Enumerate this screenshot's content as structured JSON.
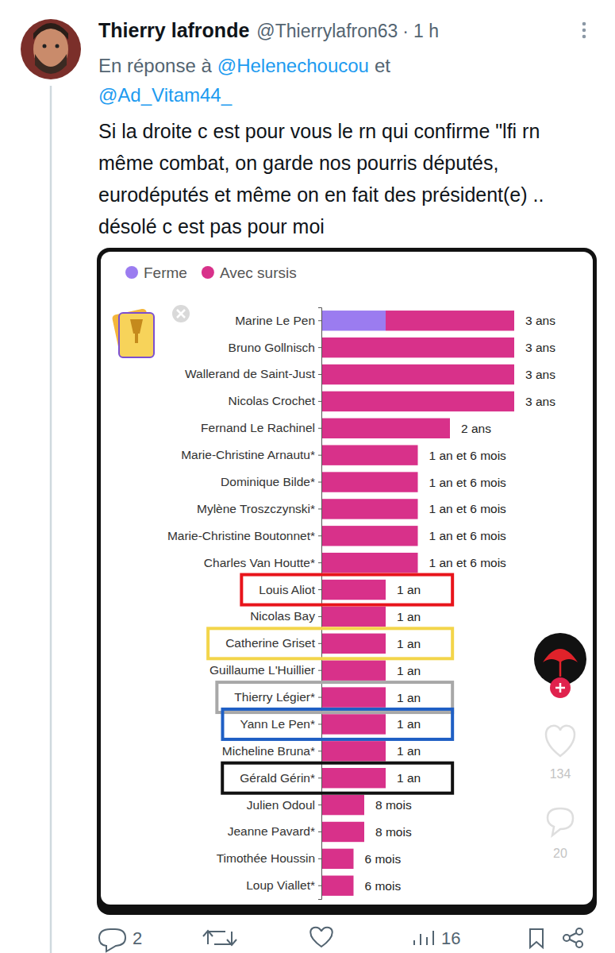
{
  "tweet": {
    "author": "Thierry lafronde",
    "handle": "@Thierrylafron63",
    "separator": "·",
    "time": "1 h",
    "reply_prefix": "En réponse à",
    "reply_to": [
      "@Helenechoucou",
      "@Ad_Vitam44_"
    ],
    "reply_joiner": "et",
    "text": "Si la droite c est pour vous le rn qui confirme \"lfi rn même combat, on garde nos pourris députés, eurodéputés et même on en fait des président(e) .. désolé c est pas pour moi"
  },
  "chart_data": {
    "type": "bar",
    "orientation": "horizontal",
    "stacked": true,
    "legend": "top-left",
    "tick_labels": "y",
    "categories": [
      "Marine Le Pen",
      "Bruno Gollnisch",
      "Wallerand de Saint-Just",
      "Nicolas Crochet",
      "Fernand Le Rachinel",
      "Marie-Christine Arnautu*",
      "Dominique Bilde*",
      "Mylène Troszczynski*",
      "Marie-Christine Boutonnet*",
      "Charles Van Houtte*",
      "Louis Aliot",
      "Nicolas Bay",
      "Catherine Griset",
      "Guillaume L'Huillier",
      "Thierry Légier*",
      "Yann Le Pen*",
      "Micheline Bruna*",
      "Gérald Gérin*",
      "Julien Odoul",
      "Jeanne Pavard*",
      "Timothée Houssin",
      "Loup Viallet*"
    ],
    "series": [
      {
        "name": "Ferme",
        "color": "#9b7cf0",
        "values": [
          12,
          0,
          0,
          0,
          0,
          0,
          0,
          0,
          0,
          0,
          0,
          0,
          0,
          0,
          0,
          0,
          0,
          0,
          0,
          0,
          0,
          0
        ]
      },
      {
        "name": "Avec sursis",
        "color": "#d8318a",
        "values": [
          24,
          36,
          36,
          36,
          24,
          18,
          18,
          18,
          18,
          18,
          12,
          12,
          12,
          12,
          12,
          12,
          12,
          12,
          8,
          8,
          6,
          6
        ]
      }
    ],
    "totals": [
      36,
      36,
      36,
      36,
      24,
      18,
      18,
      18,
      18,
      18,
      12,
      12,
      12,
      12,
      12,
      12,
      12,
      12,
      8,
      8,
      6,
      6
    ],
    "total_labels": [
      "3 ans",
      "3 ans",
      "3 ans",
      "3 ans",
      "2 ans",
      "1 an et 6 mois",
      "1 an et 6 mois",
      "1 an et 6 mois",
      "1 an et 6 mois",
      "1 an et 6 mois",
      "1 an",
      "1 an",
      "1 an",
      "1 an",
      "1 an",
      "1 an",
      "1 an",
      "1 an",
      "8 mois",
      "8 mois",
      "6 mois",
      "6 mois"
    ],
    "xlim": [
      0,
      36
    ],
    "annotations": [
      {
        "category": "Louis Aliot",
        "color": "#e8141b"
      },
      {
        "category": "Catherine Griset",
        "color": "#f3d54a"
      },
      {
        "category": "Thierry Légier*",
        "color": "#a8a8a8"
      },
      {
        "category": "Yann Le Pen*",
        "color": "#1f5fc4"
      },
      {
        "category": "Gérald Gérin*",
        "color": "#111111"
      }
    ]
  },
  "overlay": {
    "likes": 134,
    "comments": 20
  },
  "footer": {
    "replies": 2,
    "views": 16
  }
}
